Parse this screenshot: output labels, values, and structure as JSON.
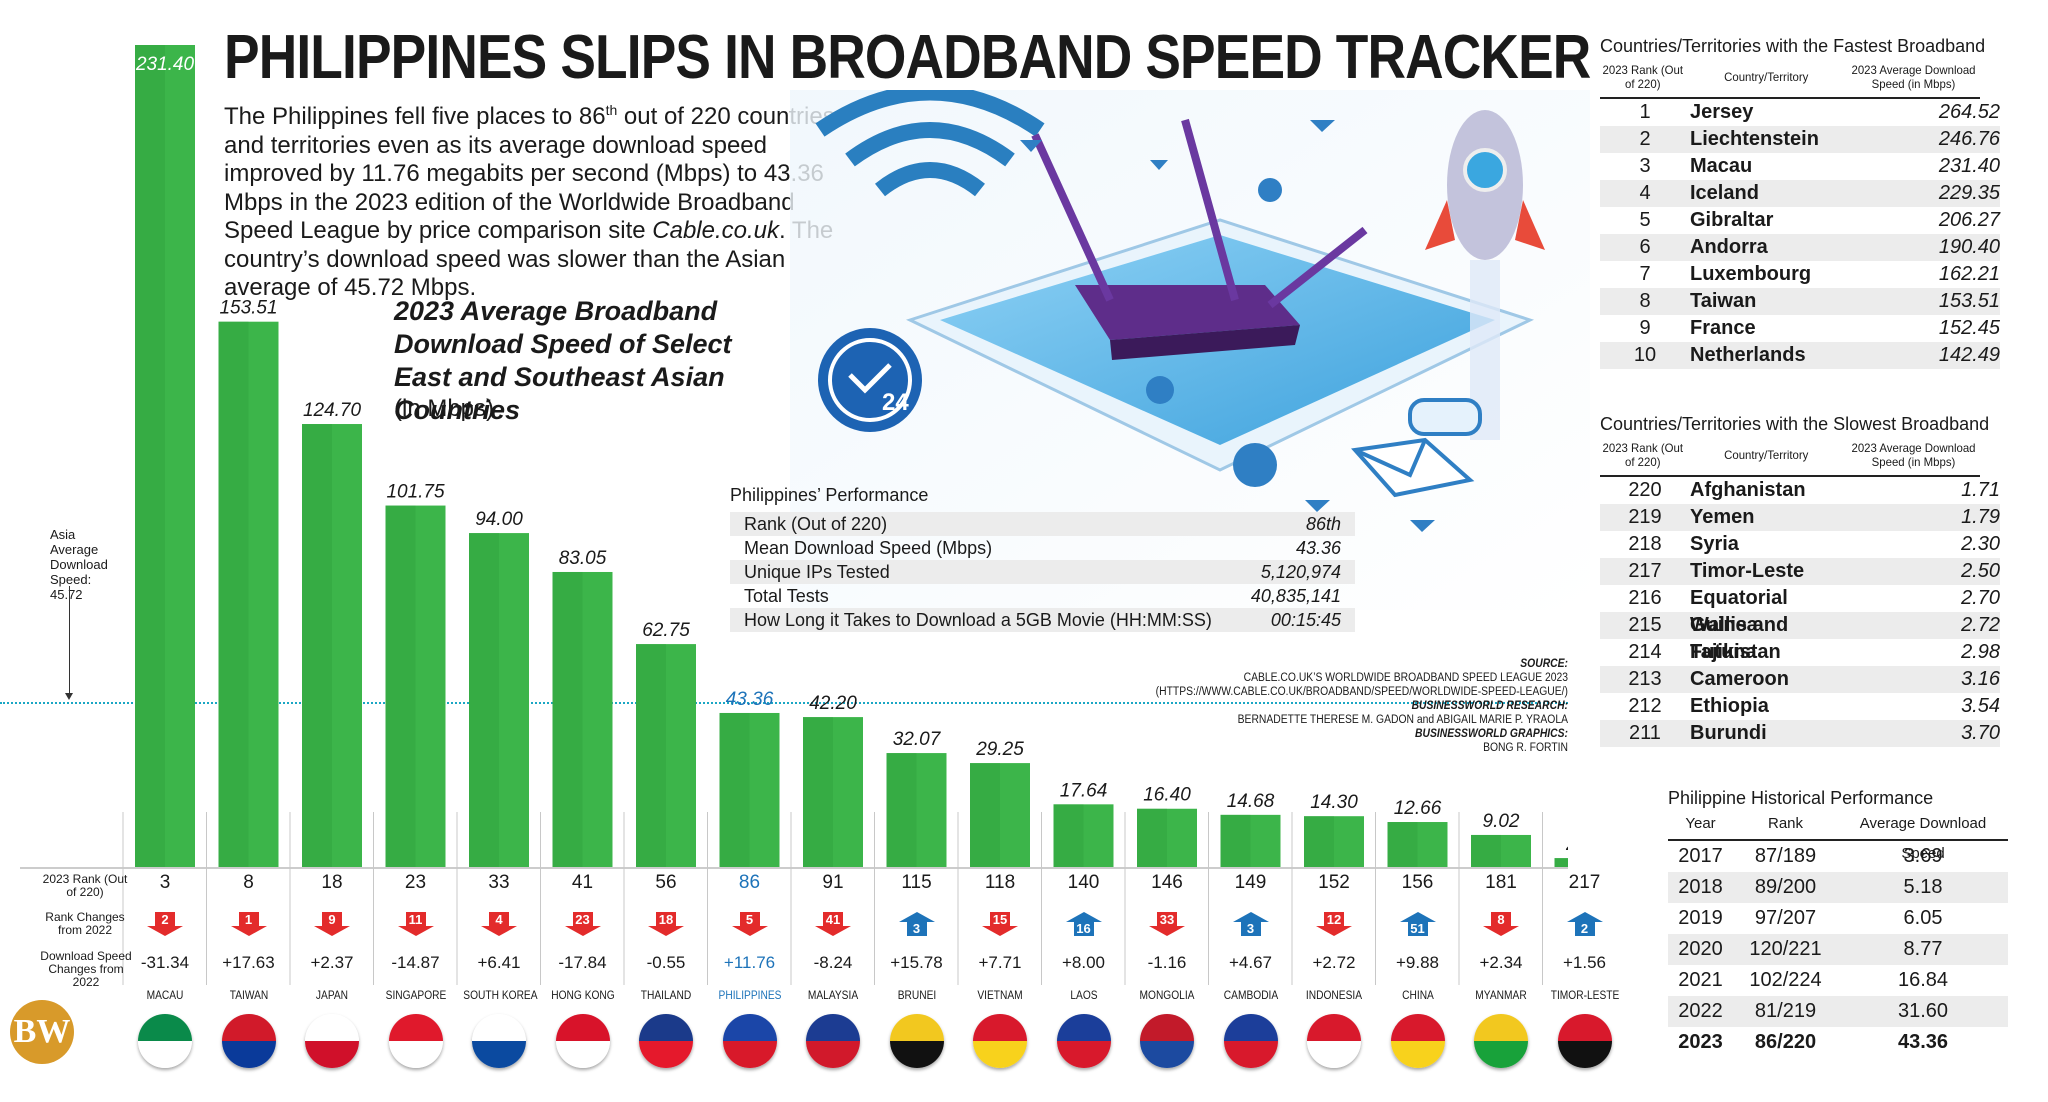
{
  "title": "PHILIPPINES SLIPS IN BROADBAND SPEED TRACKER",
  "intro": {
    "part1": "The Philippines fell five places to 86",
    "sup": "th",
    "part2": " out of 220 countries and territories even as its average download speed improved by 11.76 megabits per second (Mbps) to 43.36 Mbps in the 2023 edition of the Worldwide Broadband Speed League by price comparison site ",
    "site": "Cable.co.uk",
    "part3": ". The country’s download speed was slower than the Asian average of 45.72 Mbps."
  },
  "chart_heading": "2023 Average Broadband Download Speed of Select East and Southeast Asian Countries",
  "chart_unit": "(in Mbps)",
  "asia_label": [
    "Asia",
    "Average",
    "Download",
    "Speed:",
    "45.72"
  ],
  "row_labels": {
    "rank": "2023 Rank (Out of 220)",
    "rank_change": "Rank Changes from 2022",
    "speed_change": "Download Speed Changes from 2022"
  },
  "chart_data": {
    "type": "bar",
    "title": "2023 Average Broadband Download Speed of Select East and Southeast Asian Countries",
    "ylabel": "(in Mbps)",
    "ylim": [
      0,
      231.4
    ],
    "reference_line": {
      "label": "Asia Average Download Speed",
      "value": 45.72
    },
    "categories": [
      "MACAU",
      "TAIWAN",
      "JAPAN",
      "SINGAPORE",
      "SOUTH KOREA",
      "HONG KONG",
      "THAILAND",
      "PHILIPPINES",
      "MALAYSIA",
      "BRUNEI",
      "VIETNAM",
      "LAOS",
      "MONGOLIA",
      "CAMBODIA",
      "INDONESIA",
      "CHINA",
      "MYANMAR",
      "TIMOR-LESTE"
    ],
    "values": [
      231.4,
      153.51,
      124.7,
      101.75,
      94.0,
      83.05,
      62.75,
      43.36,
      42.2,
      32.07,
      29.25,
      17.64,
      16.4,
      14.68,
      14.3,
      12.66,
      9.02,
      2.5
    ],
    "value_labels": [
      "231.40",
      "153.51",
      "124.70",
      "101.75",
      "94.00",
      "83.05",
      "62.75",
      "43.36",
      "42.20",
      "32.07",
      "29.25",
      "17.64",
      "16.40",
      "14.68",
      "14.30",
      "12.66",
      "9.02",
      "2.50"
    ],
    "ranks": [
      "3",
      "8",
      "18",
      "23",
      "33",
      "41",
      "56",
      "86",
      "91",
      "115",
      "118",
      "140",
      "146",
      "149",
      "152",
      "156",
      "181",
      "217"
    ],
    "rank_changes": [
      {
        "v": "2",
        "dir": "down"
      },
      {
        "v": "1",
        "dir": "down"
      },
      {
        "v": "9",
        "dir": "down"
      },
      {
        "v": "11",
        "dir": "down"
      },
      {
        "v": "4",
        "dir": "down"
      },
      {
        "v": "23",
        "dir": "down"
      },
      {
        "v": "18",
        "dir": "down"
      },
      {
        "v": "5",
        "dir": "down"
      },
      {
        "v": "41",
        "dir": "down"
      },
      {
        "v": "3",
        "dir": "up"
      },
      {
        "v": "15",
        "dir": "down"
      },
      {
        "v": "16",
        "dir": "up"
      },
      {
        "v": "33",
        "dir": "down"
      },
      {
        "v": "3",
        "dir": "up"
      },
      {
        "v": "12",
        "dir": "down"
      },
      {
        "v": "51",
        "dir": "up"
      },
      {
        "v": "8",
        "dir": "down"
      },
      {
        "v": "2",
        "dir": "up"
      }
    ],
    "speed_changes": [
      "-31.34",
      "+17.63",
      "+2.37",
      "-14.87",
      "+6.41",
      "-17.84",
      "-0.55",
      "+11.76",
      "-8.24",
      "+15.78",
      "+7.71",
      "+8.00",
      "-1.16",
      "+4.67",
      "+2.72",
      "+9.88",
      "+2.34",
      "+1.56"
    ],
    "highlight": "PHILIPPINES",
    "bar_color": "#3cb54a",
    "highlight_color": "#1d73b9",
    "down_color": "#e32b2b",
    "up_color": "#1d73b9"
  },
  "performance": {
    "title": "Philippines’ Performance",
    "rows": [
      {
        "label": "Rank (Out of 220)",
        "value": "86th"
      },
      {
        "label": "Mean Download Speed (Mbps)",
        "value": "43.36"
      },
      {
        "label": "Unique IPs Tested",
        "value": "5,120,974"
      },
      {
        "label": "Total Tests",
        "value": "40,835,141"
      },
      {
        "label": "How Long it Takes to Download a 5GB Movie (HH:MM:SS)",
        "value": "00:15:45"
      }
    ]
  },
  "source": {
    "label": "SOURCE:",
    "line1": "CABLE.CO.UK’S WORLDWIDE BROADBAND SPEED LEAGUE 2023",
    "line2": "(HTTPS://WWW.CABLE.CO.UK/BROADBAND/SPEED/WORLDWIDE-SPEED-LEAGUE/)",
    "research_label": "BUSINESSWORLD RESEARCH:",
    "research": "BERNADETTE THERESE M. GADON and ABIGAIL MARIE P. YRAOLA",
    "graphics_label": "BUSINESSWORLD GRAPHICS:",
    "graphics": "BONG R. FORTIN"
  },
  "fastest": {
    "title": "Countries/Territories with the Fastest Broadband",
    "headers": [
      "2023 Rank (Out of 220)",
      "Country/Territory",
      "2023 Average Download Speed (in Mbps)"
    ],
    "rows": [
      [
        "1",
        "Jersey",
        "264.52"
      ],
      [
        "2",
        "Liechtenstein",
        "246.76"
      ],
      [
        "3",
        "Macau",
        "231.40"
      ],
      [
        "4",
        "Iceland",
        "229.35"
      ],
      [
        "5",
        "Gibraltar",
        "206.27"
      ],
      [
        "6",
        "Andorra",
        "190.40"
      ],
      [
        "7",
        "Luxembourg",
        "162.21"
      ],
      [
        "8",
        "Taiwan",
        "153.51"
      ],
      [
        "9",
        "France",
        "152.45"
      ],
      [
        "10",
        "Netherlands",
        "142.49"
      ]
    ]
  },
  "slowest": {
    "title": "Countries/Territories with the Slowest Broadband",
    "headers": [
      "2023 Rank (Out of 220)",
      "Country/Territory",
      "2023 Average Download Speed (in Mbps)"
    ],
    "rows": [
      [
        "220",
        "Afghanistan",
        "1.71"
      ],
      [
        "219",
        "Yemen",
        "1.79"
      ],
      [
        "218",
        "Syria",
        "2.30"
      ],
      [
        "217",
        "Timor-Leste",
        "2.50"
      ],
      [
        "216",
        "Equatorial Guinea",
        "2.70"
      ],
      [
        "215",
        "Wallis and Futuna",
        "2.72"
      ],
      [
        "214",
        "Tajikistan",
        "2.98"
      ],
      [
        "213",
        "Cameroon",
        "3.16"
      ],
      [
        "212",
        "Ethiopia",
        "3.54"
      ],
      [
        "211",
        "Burundi",
        "3.70"
      ]
    ]
  },
  "historical": {
    "title": "Philippine Historical Performance",
    "headers": [
      "Year",
      "Rank",
      "Average Download Speed"
    ],
    "rows": [
      [
        "2017",
        "87/189",
        "3.69"
      ],
      [
        "2018",
        "89/200",
        "5.18"
      ],
      [
        "2019",
        "97/207",
        "6.05"
      ],
      [
        "2020",
        "120/221",
        "8.77"
      ],
      [
        "2021",
        "102/224",
        "16.84"
      ],
      [
        "2022",
        "81/219",
        "31.60"
      ],
      [
        "2023",
        "86/220",
        "43.36"
      ]
    ]
  },
  "illustration_badge": "24",
  "logo": "BW"
}
